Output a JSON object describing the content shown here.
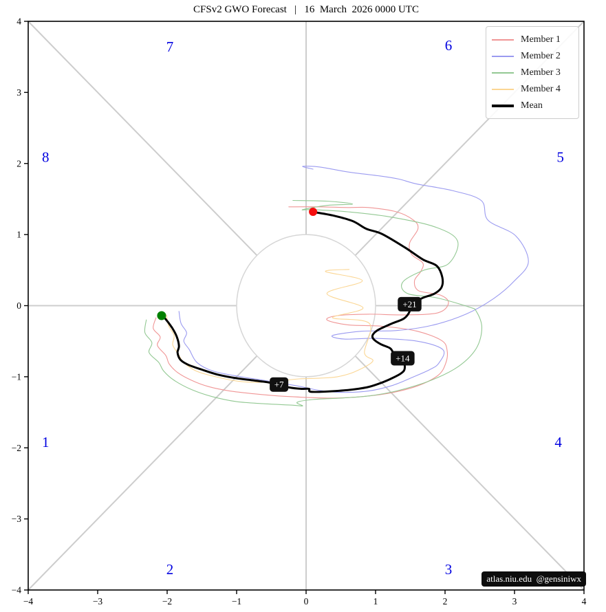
{
  "chart_data": {
    "type": "line",
    "title": "CFSv2 GWO Forecast   |   16  March  2026 0000 UTC",
    "xlabel": "",
    "ylabel": "",
    "xlim": [
      -4,
      4
    ],
    "ylim": [
      -4,
      4
    ],
    "grid": false,
    "legend_position": "upper right",
    "xticks": [
      "−4",
      "−3",
      "−2",
      "−1",
      "0",
      "1",
      "2",
      "3",
      "4"
    ],
    "yticks": [
      "−4",
      "−3",
      "−2",
      "−1",
      "0",
      "1",
      "2",
      "3",
      "4"
    ],
    "xtick_values": [
      -4,
      -3,
      -2,
      -1,
      0,
      1,
      2,
      3,
      4
    ],
    "ytick_values": [
      -4,
      -3,
      -2,
      -1,
      0,
      1,
      2,
      3,
      4
    ],
    "unit_circle_radius": 1,
    "colors": {
      "phase_label": "#0000e0",
      "spoke": "#cdcdcd",
      "circle": "#d6d6d6",
      "start_dot": "#008000",
      "end_dot": "#f50f0f",
      "day_label_bg": "#111111",
      "day_label_text": "#ffffff"
    },
    "phase_labels": [
      {
        "label": "1",
        "x": -3.75,
        "y": -1.92
      },
      {
        "label": "2",
        "x": -1.96,
        "y": -3.71
      },
      {
        "label": "3",
        "x": 2.05,
        "y": -3.71
      },
      {
        "label": "4",
        "x": 3.63,
        "y": -1.92
      },
      {
        "label": "5",
        "x": 3.66,
        "y": 2.09
      },
      {
        "label": "6",
        "x": 2.05,
        "y": 3.66
      },
      {
        "label": "7",
        "x": -1.96,
        "y": 3.64
      },
      {
        "label": "8",
        "x": -3.75,
        "y": 2.09
      }
    ],
    "day_labels": [
      {
        "label": "+7",
        "x": -0.39,
        "y": -1.11
      },
      {
        "label": "+14",
        "x": 1.39,
        "y": -0.74
      },
      {
        "label": "+21",
        "x": 1.49,
        "y": 0.02
      }
    ],
    "dots": [
      {
        "name": "green-dot",
        "x": -2.08,
        "y": -0.14,
        "color": "#008000",
        "r": 6.5
      },
      {
        "name": "red-dot",
        "x": 0.1,
        "y": 1.32,
        "color": "#f50f0f",
        "r": 6
      }
    ],
    "series": [
      {
        "name": "Member 1",
        "color": "#f09595",
        "width": 1.1,
        "points": [
          [
            -2.16,
            -0.17
          ],
          [
            -2.2,
            -0.32
          ],
          [
            -2.1,
            -0.44
          ],
          [
            -2.14,
            -0.56
          ],
          [
            -2.02,
            -0.7
          ],
          [
            -1.97,
            -0.82
          ],
          [
            -1.85,
            -0.94
          ],
          [
            -1.65,
            -1.05
          ],
          [
            -1.4,
            -1.14
          ],
          [
            -1.1,
            -1.2
          ],
          [
            -0.75,
            -1.24
          ],
          [
            -0.4,
            -1.27
          ],
          [
            0.0,
            -1.29
          ],
          [
            0.4,
            -1.3
          ],
          [
            0.8,
            -1.28
          ],
          [
            1.2,
            -1.23
          ],
          [
            1.6,
            -1.13
          ],
          [
            1.9,
            -0.98
          ],
          [
            2.01,
            -0.81
          ],
          [
            2.03,
            -0.63
          ],
          [
            1.95,
            -0.49
          ],
          [
            1.6,
            -0.36
          ],
          [
            1.1,
            -0.29
          ],
          [
            0.6,
            -0.27
          ],
          [
            0.3,
            -0.2
          ],
          [
            0.45,
            -0.14
          ],
          [
            0.9,
            -0.12
          ],
          [
            1.4,
            -0.13
          ],
          [
            1.9,
            -0.1
          ],
          [
            2.05,
            0.04
          ],
          [
            1.93,
            0.15
          ],
          [
            1.62,
            0.21
          ],
          [
            1.56,
            0.35
          ],
          [
            1.65,
            0.48
          ],
          [
            1.68,
            0.6
          ],
          [
            1.52,
            0.72
          ],
          [
            1.49,
            0.88
          ],
          [
            1.61,
            1.08
          ],
          [
            1.55,
            1.2
          ],
          [
            1.3,
            1.32
          ],
          [
            0.9,
            1.38
          ],
          [
            0.61,
            1.38
          ],
          [
            0.2,
            1.39
          ],
          [
            -0.25,
            1.39
          ]
        ]
      },
      {
        "name": "Member 2",
        "color": "#9a9af0",
        "width": 1.1,
        "points": [
          [
            -1.83,
            -0.08
          ],
          [
            -1.8,
            -0.25
          ],
          [
            -1.72,
            -0.38
          ],
          [
            -1.76,
            -0.5
          ],
          [
            -1.68,
            -0.62
          ],
          [
            -1.57,
            -0.8
          ],
          [
            -1.34,
            -0.92
          ],
          [
            -0.94,
            -1.0
          ],
          [
            -0.61,
            -1.05
          ],
          [
            -0.12,
            -1.13
          ],
          [
            0.18,
            -1.19
          ],
          [
            0.5,
            -1.22
          ],
          [
            0.9,
            -1.2
          ],
          [
            1.25,
            -1.12
          ],
          [
            1.55,
            -1.0
          ],
          [
            1.78,
            -0.9
          ],
          [
            1.91,
            -0.81
          ],
          [
            1.97,
            -0.62
          ],
          [
            1.6,
            -0.5
          ],
          [
            1.0,
            -0.46
          ],
          [
            0.55,
            -0.47
          ],
          [
            0.38,
            -0.42
          ],
          [
            0.8,
            -0.36
          ],
          [
            1.3,
            -0.35
          ],
          [
            1.8,
            -0.28
          ],
          [
            2.3,
            -0.12
          ],
          [
            2.7,
            0.1
          ],
          [
            3.0,
            0.35
          ],
          [
            3.2,
            0.62
          ],
          [
            3.02,
            0.98
          ],
          [
            2.62,
            1.2
          ],
          [
            2.52,
            1.48
          ],
          [
            2.1,
            1.62
          ],
          [
            1.6,
            1.71
          ],
          [
            1.34,
            1.78
          ],
          [
            1.1,
            1.82
          ],
          [
            0.61,
            1.88
          ],
          [
            0.2,
            1.95
          ],
          [
            -0.05,
            1.96
          ],
          [
            0.1,
            1.92
          ]
        ]
      },
      {
        "name": "Member 3",
        "color": "#92c892",
        "width": 1.1,
        "points": [
          [
            -2.3,
            -0.2
          ],
          [
            -2.32,
            -0.38
          ],
          [
            -2.22,
            -0.52
          ],
          [
            -2.26,
            -0.66
          ],
          [
            -2.12,
            -0.8
          ],
          [
            -2.05,
            -0.92
          ],
          [
            -1.9,
            -1.05
          ],
          [
            -1.65,
            -1.18
          ],
          [
            -1.35,
            -1.28
          ],
          [
            -1.0,
            -1.35
          ],
          [
            -0.6,
            -1.38
          ],
          [
            -0.2,
            -1.4
          ],
          [
            -0.05,
            -1.41
          ],
          [
            -0.13,
            -1.36
          ],
          [
            0.1,
            -1.32
          ],
          [
            0.5,
            -1.3
          ],
          [
            0.9,
            -1.27
          ],
          [
            1.3,
            -1.2
          ],
          [
            1.8,
            -1.05
          ],
          [
            2.2,
            -0.85
          ],
          [
            2.45,
            -0.6
          ],
          [
            2.53,
            -0.31
          ],
          [
            2.45,
            -0.08
          ],
          [
            2.35,
            -0.02
          ],
          [
            1.88,
            0.11
          ],
          [
            1.46,
            0.17
          ],
          [
            1.39,
            0.33
          ],
          [
            1.7,
            0.5
          ],
          [
            2.05,
            0.59
          ],
          [
            2.18,
            0.91
          ],
          [
            1.85,
            1.11
          ],
          [
            1.2,
            1.25
          ],
          [
            0.6,
            1.32
          ],
          [
            0.1,
            1.35
          ],
          [
            -0.05,
            1.35
          ],
          [
            0.3,
            1.41
          ],
          [
            0.67,
            1.43
          ],
          [
            0.3,
            1.47
          ],
          [
            -0.19,
            1.48
          ]
        ]
      },
      {
        "name": "Member 4",
        "color": "#fbd693",
        "width": 1.1,
        "points": [
          [
            -2.01,
            -0.13
          ],
          [
            -1.98,
            -0.28
          ],
          [
            -1.9,
            -0.42
          ],
          [
            -1.92,
            -0.55
          ],
          [
            -1.84,
            -0.68
          ],
          [
            -1.76,
            -0.8
          ],
          [
            -1.58,
            -0.92
          ],
          [
            -1.3,
            -1.0
          ],
          [
            -1.0,
            -1.06
          ],
          [
            -0.7,
            -1.08
          ],
          [
            -0.4,
            -1.06
          ],
          [
            -0.1,
            -1.03
          ],
          [
            0.2,
            -1.02
          ],
          [
            0.45,
            -1.0
          ],
          [
            0.7,
            -0.93
          ],
          [
            0.96,
            -0.78
          ],
          [
            0.84,
            -0.66
          ],
          [
            0.91,
            -0.25
          ],
          [
            0.38,
            -0.17
          ],
          [
            0.82,
            -0.03
          ],
          [
            0.3,
            0.17
          ],
          [
            0.81,
            0.35
          ],
          [
            0.28,
            0.48
          ],
          [
            0.62,
            0.51
          ]
        ]
      },
      {
        "name": "Mean",
        "color": "#000000",
        "width": 3,
        "points": [
          [
            -2.08,
            -0.14
          ],
          [
            -2.03,
            -0.18
          ],
          [
            -1.93,
            -0.31
          ],
          [
            -1.86,
            -0.44
          ],
          [
            -1.83,
            -0.57
          ],
          [
            -1.85,
            -0.66
          ],
          [
            -1.81,
            -0.76
          ],
          [
            -1.7,
            -0.83
          ],
          [
            -1.5,
            -0.9
          ],
          [
            -1.27,
            -0.97
          ],
          [
            -1.01,
            -1.02
          ],
          [
            -0.77,
            -1.05
          ],
          [
            -0.54,
            -1.08
          ],
          [
            -0.39,
            -1.11
          ],
          [
            -0.25,
            -1.15
          ],
          [
            -0.08,
            -1.17
          ],
          [
            0.04,
            -1.17
          ],
          [
            0.06,
            -1.21
          ],
          [
            0.25,
            -1.21
          ],
          [
            0.57,
            -1.19
          ],
          [
            0.87,
            -1.15
          ],
          [
            1.07,
            -1.09
          ],
          [
            1.24,
            -1.02
          ],
          [
            1.37,
            -0.95
          ],
          [
            1.42,
            -0.88
          ],
          [
            1.39,
            -0.74
          ],
          [
            1.27,
            -0.68
          ],
          [
            1.21,
            -0.6
          ],
          [
            1.07,
            -0.54
          ],
          [
            0.97,
            -0.47
          ],
          [
            0.96,
            -0.41
          ],
          [
            1.04,
            -0.34
          ],
          [
            1.24,
            -0.25
          ],
          [
            1.41,
            -0.18
          ],
          [
            1.49,
            -0.08
          ],
          [
            1.49,
            0.02
          ],
          [
            1.55,
            0.04
          ],
          [
            1.68,
            0.11
          ],
          [
            1.85,
            0.17
          ],
          [
            1.95,
            0.26
          ],
          [
            1.96,
            0.4
          ],
          [
            1.88,
            0.56
          ],
          [
            1.68,
            0.65
          ],
          [
            1.42,
            0.82
          ],
          [
            1.09,
            1.01
          ],
          [
            0.87,
            1.08
          ],
          [
            0.67,
            1.19
          ],
          [
            0.38,
            1.27
          ],
          [
            0.09,
            1.32
          ]
        ]
      }
    ],
    "watermark": "atlas.niu.edu  @gensiniwx"
  }
}
